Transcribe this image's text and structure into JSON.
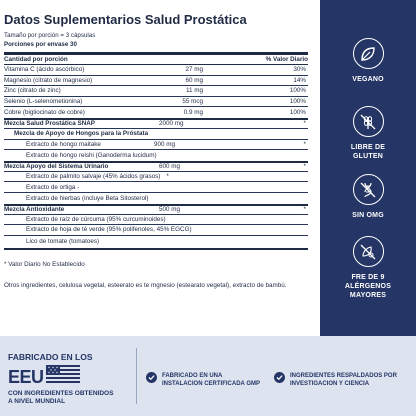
{
  "facts": {
    "title": "Datos Suplementarios Salud Prostática",
    "serving_size": "Tamaño por porción = 3 cápsulas",
    "servings": "Porciones por envase 30",
    "header": {
      "name": "Cantidad por porción",
      "dv": "% Valor Diario"
    },
    "nutrients": [
      {
        "name": "Vitamina C (ácido ascórbico)",
        "amount": "27 mg",
        "dv": "30%"
      },
      {
        "name": "Magnesio (citrato de magnesio)",
        "amount": "60 mg",
        "dv": "14%"
      },
      {
        "name": "Zinc (citrato de zinc)",
        "amount": "11 mg",
        "dv": "100%"
      },
      {
        "name": "Selenio (L-selenometionina)",
        "amount": "55 mcg",
        "dv": "100%"
      },
      {
        "name": "Cobre (bigliocinato de cobre)",
        "amount": "0.9 mg",
        "dv": "100%"
      }
    ],
    "blend1": {
      "name": "Mezcla Salud Prostática SNAP",
      "amount": "2000 mg",
      "dv": "*"
    },
    "blend1_sub": {
      "name": "Mezcla de Apoyo de Hongos para la Próstata"
    },
    "blend1_items": [
      {
        "name": "Extracto de hongo maitake",
        "amount": "900 mg",
        "dv": "*"
      },
      {
        "name": "Extracto de hongo reishi (Ganoderma lucidum)",
        "amount": "",
        "dv": ""
      }
    ],
    "blend2": {
      "name": "Mezcla Apoyo del Sistema Urinario",
      "amount": "600 mg",
      "dv": "*"
    },
    "blend2_items": [
      {
        "name": "Extracto de palmito salvaje (45% ácidos grasos)",
        "dv": "*"
      },
      {
        "name": "Extracto de ortiga -",
        "dv": ""
      },
      {
        "name": "Extracto de hierbas (incluye Beta Sitosterol)",
        "dv": ""
      }
    ],
    "blend3": {
      "name": "Mezcla Antioxidante",
      "amount": "500 mg",
      "dv": "*"
    },
    "blend3_items": [
      {
        "name": "Extracto de raíz de cúrcuma (95% curcuminoides)"
      },
      {
        "name": "Extracto de hoja de té verde (95% polifenoles, 45% EGCG)"
      },
      {
        "name": "Lico de tomate (tomatoes)"
      }
    ],
    "note": "* Valor Diario No Establecido",
    "other": "Otros ingredientes, celulosa vegetal, esteerato es te mgnesio (estearato vegetal), extracto de bambú."
  },
  "badges": [
    {
      "icon": "vegan-leaf-icon",
      "label": "VEGANO"
    },
    {
      "icon": "gluten-free-wheat-icon",
      "label": "LIBRE DE GLUTEN"
    },
    {
      "icon": "non-gmo-dna-icon",
      "label": "SIN OMG"
    },
    {
      "icon": "allergen-free-icon",
      "label": "FRE DE 9 ALÉRGENOS MAYORES"
    }
  ],
  "band": {
    "made_line1": "FABRICADO EN LOS",
    "made_country": "EEU",
    "made_line3": "CON INGREDIENTES OBTENIDOS A NIVEL MUNDIAL",
    "feature1": "FABRICADO EN UNA INSTALACION CERTIFICADA GMP",
    "feature2": "INGREDIENTES RESPALDADOS POR INVESTIGACION Y CIENCIA"
  },
  "colors": {
    "navy": "#253666",
    "band": "#dde3ef",
    "text": "#1f2a44"
  }
}
